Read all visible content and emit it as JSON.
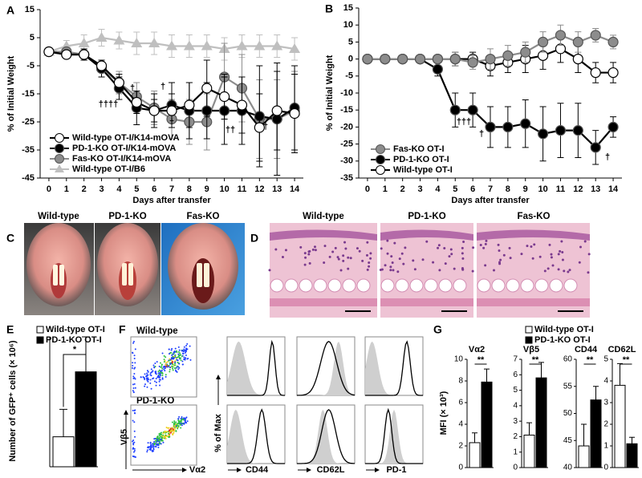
{
  "chart_data": [
    {
      "type": "line",
      "panel_label": "A",
      "ylabel": "% of Initial Weight",
      "xlabel": "Days after transfer",
      "x": [
        0,
        1,
        2,
        3,
        4,
        5,
        6,
        7,
        8,
        9,
        10,
        11,
        12,
        13,
        14
      ],
      "xlim": [
        -0.5,
        14.5
      ],
      "xticks": [
        0,
        1,
        2,
        3,
        4,
        5,
        6,
        7,
        8,
        9,
        10,
        11,
        12,
        13,
        14
      ],
      "ylim": [
        -45,
        15
      ],
      "yticks": [
        -45,
        -35,
        -25,
        -15,
        -5,
        5,
        15
      ],
      "legend": "lower left",
      "series": [
        {
          "name": "Wild-type OT-I/B6",
          "color": "#bfbfbf",
          "line_color": "#bfbfbf",
          "marker": "triangle",
          "values": [
            0,
            2,
            3,
            5,
            4,
            3,
            3,
            2,
            2,
            2,
            1,
            2,
            2,
            2,
            1
          ],
          "errors": [
            1,
            2,
            3,
            3,
            3,
            4,
            4,
            4,
            4,
            4,
            4,
            4,
            4,
            4,
            4
          ]
        },
        {
          "name": "Fas-KO OT-I/K14-mOVA",
          "color": "#8c8c8c",
          "line_color": "#8c8c8c",
          "marker": "circle",
          "values": [
            0,
            0,
            -1,
            -6,
            -11,
            -16,
            -20,
            -24,
            -25,
            -25,
            -9,
            -13,
            -24,
            -24,
            -21
          ],
          "errors": [
            1,
            1,
            2,
            3,
            4,
            5,
            6,
            7,
            8,
            10,
            12,
            12,
            14,
            14,
            14
          ]
        },
        {
          "name": "PD-1-KO OT-I/K14-mOVA",
          "color": "#000000",
          "line_color": "#000000",
          "marker": "circle",
          "values": [
            0,
            -1,
            -1,
            -6,
            -13,
            -20,
            -21,
            -19,
            -21,
            -21,
            -21,
            -21,
            -23,
            -24,
            -20
          ],
          "errors": [
            1,
            1,
            2,
            3,
            4,
            6,
            6,
            8,
            10,
            10,
            12,
            12,
            18,
            20,
            15
          ]
        },
        {
          "name": "Wild-type OT-I/K14-mOVA",
          "color": "#ffffff",
          "line_color": "#000000",
          "marker": "circle",
          "values": [
            0,
            -1,
            -1,
            -5,
            -11,
            -18,
            -21,
            -21,
            -19,
            -13,
            -16,
            -19,
            -27,
            -21,
            -22
          ],
          "errors": [
            1,
            1,
            2,
            2,
            3,
            4,
            4,
            6,
            8,
            10,
            8,
            10,
            12,
            14,
            14
          ]
        }
      ],
      "annotations": [
        "††††",
        "†",
        "†",
        "†",
        "††",
        "†"
      ]
    },
    {
      "type": "line",
      "panel_label": "B",
      "ylabel": "% of Initial Weight",
      "xlabel": "Days after transfer",
      "x": [
        0,
        1,
        2,
        3,
        4,
        5,
        6,
        7,
        8,
        9,
        10,
        11,
        12,
        13,
        14
      ],
      "xlim": [
        -0.5,
        14.5
      ],
      "xticks": [
        0,
        1,
        2,
        3,
        4,
        5,
        6,
        7,
        8,
        9,
        10,
        11,
        12,
        13,
        14
      ],
      "ylim": [
        -35,
        15
      ],
      "yticks": [
        -35,
        -30,
        -25,
        -20,
        -15,
        -10,
        -5,
        0,
        5,
        10,
        15
      ],
      "legend": "lower left",
      "series": [
        {
          "name": "Wild-type OT-I",
          "color": "#ffffff",
          "line_color": "#000000",
          "marker": "circle",
          "values": [
            0,
            0,
            0,
            0,
            0,
            0,
            0,
            -2,
            -1,
            0,
            1,
            3,
            0,
            -4,
            -4
          ],
          "errors": [
            1,
            1,
            1,
            1,
            1,
            2,
            2,
            3,
            3,
            4,
            4,
            4,
            4,
            3,
            3
          ]
        },
        {
          "name": "PD-1-KO OT-I",
          "color": "#000000",
          "line_color": "#000000",
          "marker": "circle",
          "values": [
            0,
            0,
            0,
            0,
            -3,
            -15,
            -15,
            -20,
            -20,
            -19,
            -22,
            -21,
            -21,
            -26,
            -20
          ],
          "errors": [
            1,
            1,
            1,
            1,
            2,
            5,
            5,
            6,
            6,
            7,
            8,
            8,
            8,
            5,
            3
          ]
        },
        {
          "name": "Fas-KO OT-I",
          "color": "#8c8c8c",
          "line_color": "#8c8c8c",
          "marker": "circle",
          "values": [
            0,
            0,
            0,
            0,
            0,
            0,
            -1,
            0,
            1,
            2,
            5,
            7,
            5,
            7,
            5
          ],
          "errors": [
            1,
            1,
            1,
            1,
            1,
            2,
            2,
            3,
            3,
            3,
            3,
            3,
            3,
            2,
            2
          ]
        }
      ],
      "annotations": [
        "†††",
        "†",
        "†"
      ]
    },
    {
      "type": "bar",
      "panel_label": "E",
      "ylabel": "Number of GFP⁺ cells (× 10⁶)",
      "ylim": [
        0,
        2.6
      ],
      "legend": "upper left",
      "series": [
        {
          "name": "Wild-type OT-I",
          "color": "#ffffff",
          "values": [
            0.6
          ],
          "errors": [
            0.55
          ]
        },
        {
          "name": "PD-1-KO OT-I",
          "color": "#000000",
          "values": [
            1.9
          ],
          "errors": [
            0.7
          ]
        }
      ],
      "annotation": "*"
    },
    {
      "type": "bar_panels",
      "panel_label": "G",
      "ylabel": "MFI (× 10³)",
      "legend": [
        {
          "name": "Wild-type OT-I",
          "color": "#ffffff"
        },
        {
          "name": "PD-1-KO OT-I",
          "color": "#000000"
        }
      ],
      "subplots": [
        {
          "title": "Vα2",
          "ylim": [
            0,
            10
          ],
          "yticks": [
            0,
            2,
            4,
            6,
            8,
            10
          ],
          "values": [
            2.3,
            7.9
          ],
          "errors": [
            0.9,
            1.2
          ],
          "annotation": "**"
        },
        {
          "title": "Vβ5",
          "ylim": [
            0,
            7
          ],
          "yticks": [
            0,
            1,
            2,
            3,
            4,
            5,
            6,
            7
          ],
          "values": [
            2.1,
            5.8
          ],
          "errors": [
            0.8,
            1.0
          ],
          "annotation": "**"
        },
        {
          "title": "CD44",
          "ylim": [
            40,
            60
          ],
          "yticks": [
            40,
            45,
            50,
            55,
            60
          ],
          "values": [
            44,
            52.5
          ],
          "errors": [
            4,
            2.5
          ],
          "annotation": "**"
        },
        {
          "title": "CD62L",
          "ylim": [
            0,
            5
          ],
          "yticks": [
            0,
            1,
            2,
            3,
            4,
            5
          ],
          "values": [
            3.8,
            1.1
          ],
          "errors": [
            1.0,
            0.3
          ],
          "annotation": "**"
        }
      ]
    }
  ],
  "panel_c": {
    "label": "C",
    "images": [
      "Wild-type",
      "PD-1-KO",
      "Fas-KO"
    ]
  },
  "panel_d": {
    "label": "D",
    "images": [
      "Wild-type",
      "PD-1-KO",
      "Fas-KO"
    ]
  },
  "panel_f": {
    "label": "F",
    "rows": [
      "Wild-type",
      "PD-1-KO"
    ],
    "dot_x": "Vα2",
    "dot_y": "Vβ5",
    "hist_y": "% of Max",
    "markers": [
      "CD44",
      "CD62L",
      "PD-1"
    ]
  }
}
